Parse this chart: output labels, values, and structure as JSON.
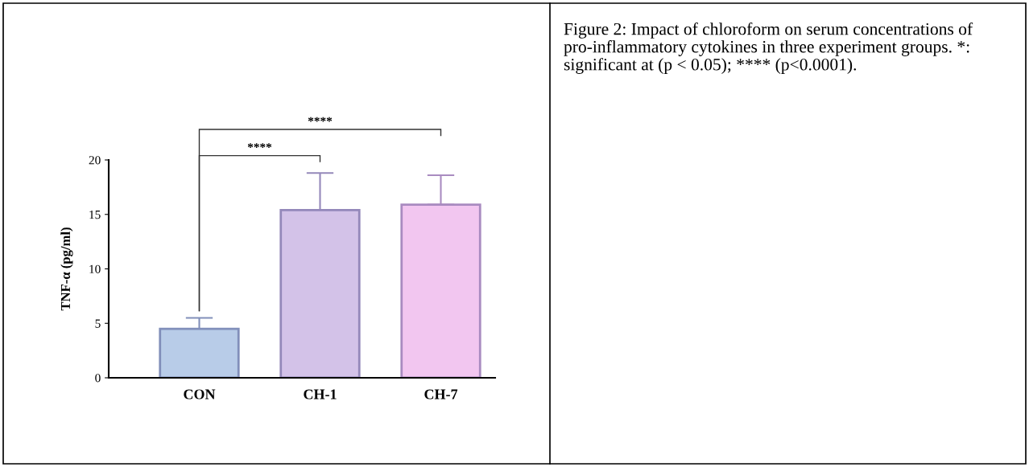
{
  "chart_data": {
    "type": "bar",
    "ylabel": "TNF-α (pg/ml)",
    "categories": [
      "CON",
      "CH-1",
      "CH-7"
    ],
    "values": [
      4.5,
      15.4,
      15.9
    ],
    "colors": [
      "#b8cce8",
      "#d3c2e8",
      "#f2c6f0"
    ],
    "errors": [
      [
        4.5,
        5.5
      ],
      [
        15.4,
        18.8
      ],
      [
        15.9,
        18.6
      ]
    ],
    "ylim": [
      0,
      20
    ],
    "yticks": [
      0,
      5,
      10,
      15,
      20
    ],
    "grid": false,
    "annotations": [
      "****",
      "****",
      "Figure 2: Impact of chloroform on serum concentrations of pro-inflammatory cytokines in three experiment groups. *: significant at (p < 0.05); **** (p<0.0001)."
    ]
  }
}
